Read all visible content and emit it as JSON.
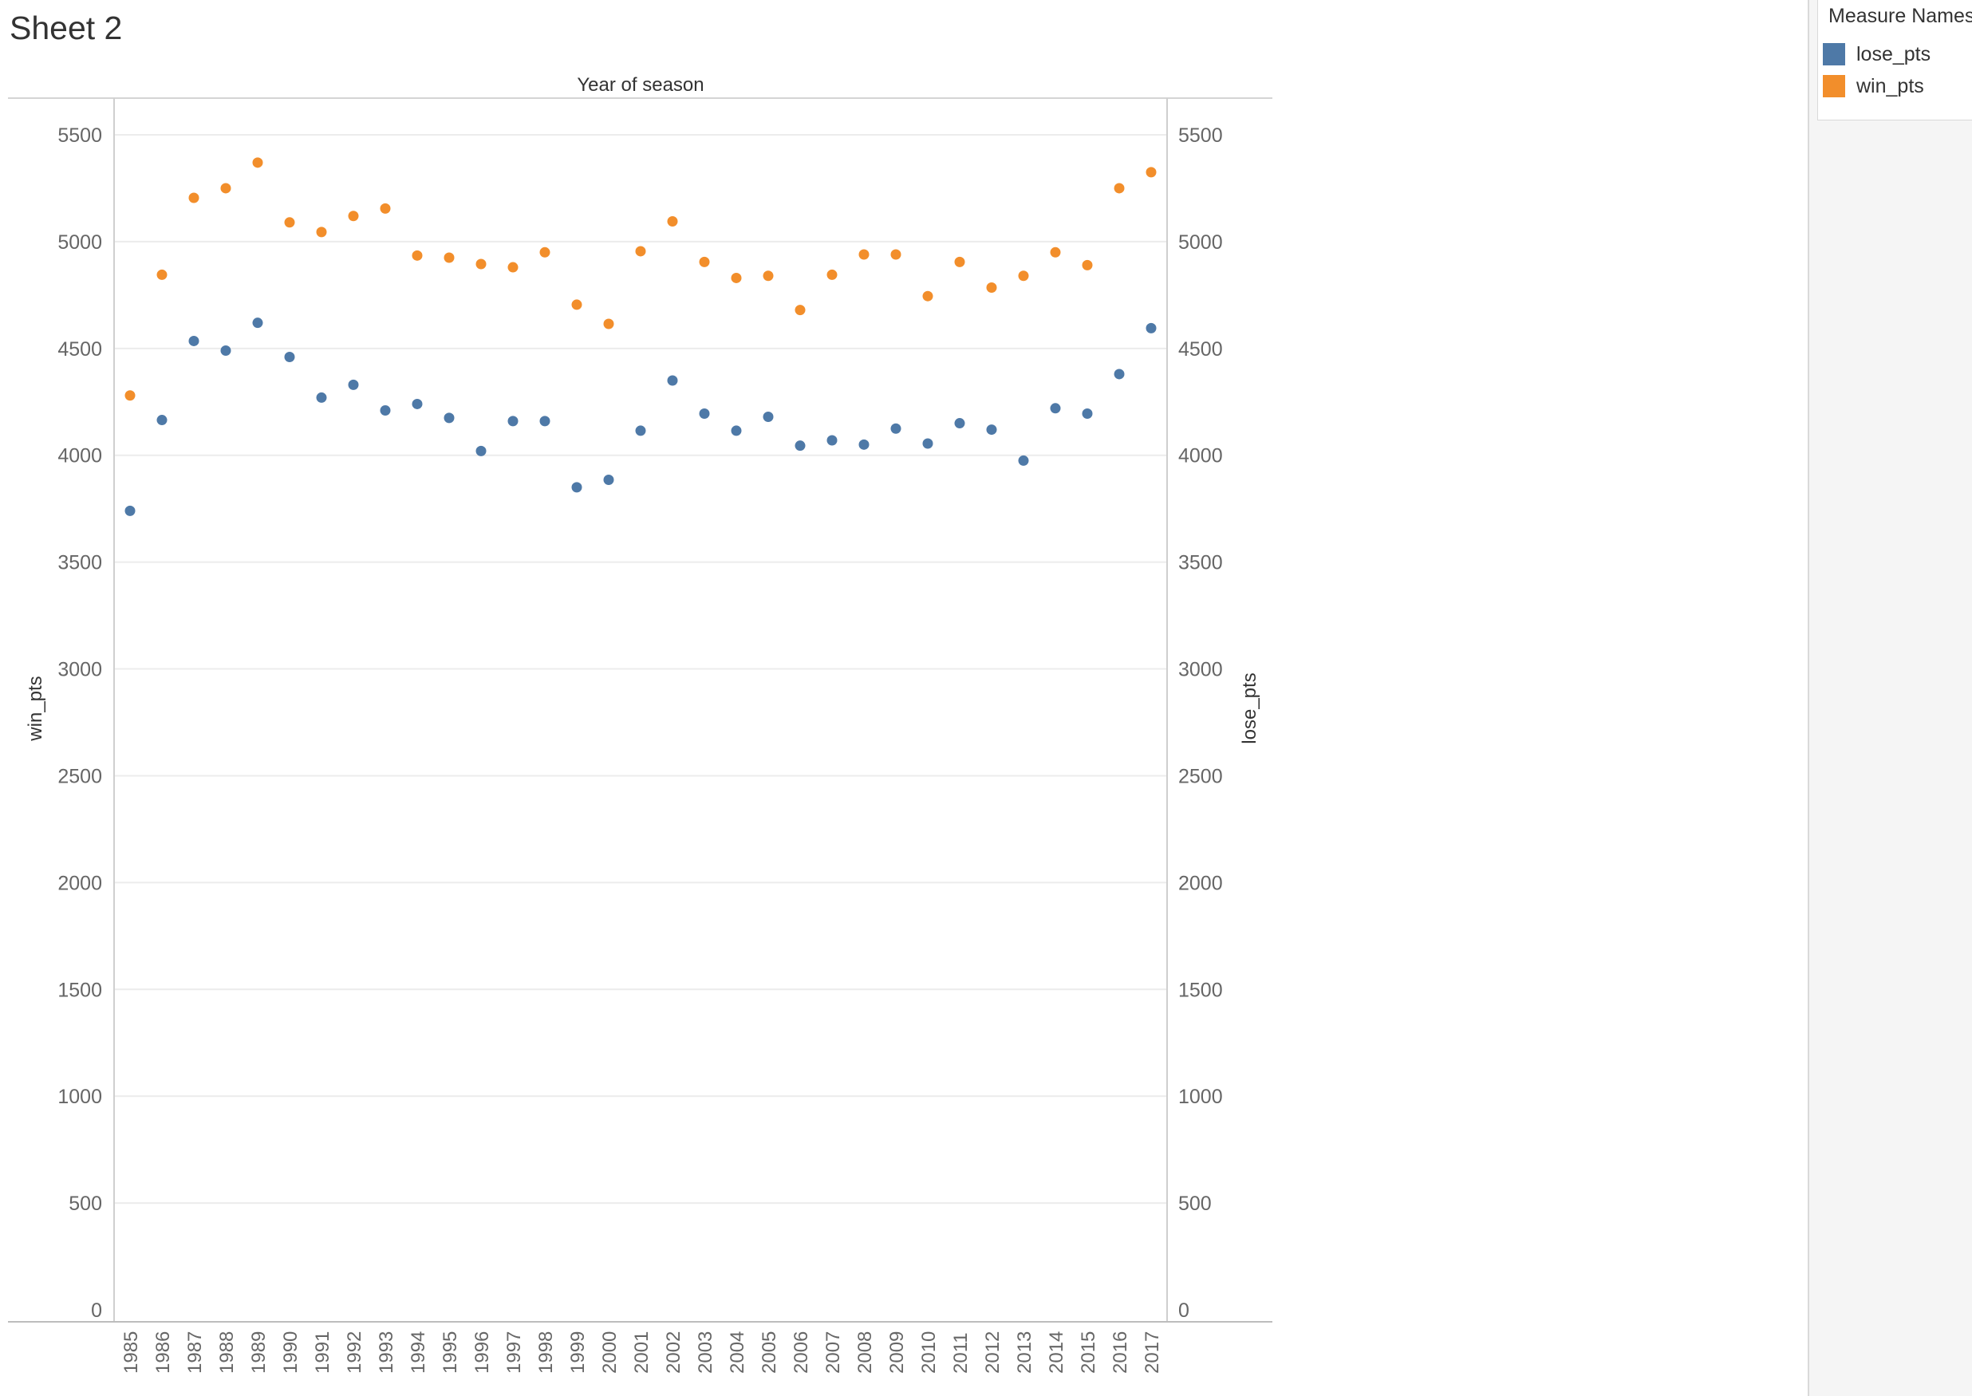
{
  "sheet": {
    "title": "Sheet 2"
  },
  "legend": {
    "title": "Measure Names",
    "items": [
      {
        "label": "lose_pts",
        "color": "#4e79a7"
      },
      {
        "label": "win_pts",
        "color": "#f28e2b"
      }
    ]
  },
  "chart_data": {
    "type": "scatter",
    "title": "Year of season",
    "xlabel": "Year of season",
    "ylabel_left": "win_pts",
    "ylabel_right": "lose_pts",
    "categories": [
      "1985",
      "1986",
      "1987",
      "1988",
      "1989",
      "1990",
      "1991",
      "1992",
      "1993",
      "1994",
      "1995",
      "1996",
      "1997",
      "1998",
      "1999",
      "2000",
      "2001",
      "2002",
      "2003",
      "2004",
      "2005",
      "2006",
      "2007",
      "2008",
      "2009",
      "2010",
      "2011",
      "2012",
      "2013",
      "2014",
      "2015",
      "2016",
      "2017"
    ],
    "ylim": [
      0,
      5700
    ],
    "yticks": [
      0,
      500,
      1000,
      1500,
      2000,
      2500,
      3000,
      3500,
      4000,
      4500,
      5000,
      5500
    ],
    "grid": true,
    "legend_position": "top-right",
    "series": [
      {
        "name": "win_pts",
        "color": "#f28e2b",
        "values": [
          4280,
          4845,
          5205,
          5250,
          5370,
          5090,
          5045,
          5120,
          5155,
          4935,
          4925,
          4895,
          4880,
          4950,
          4705,
          4615,
          4955,
          5095,
          4905,
          4830,
          4840,
          4680,
          4845,
          4940,
          4940,
          4745,
          4905,
          4785,
          4840,
          4950,
          4890,
          5250,
          5325
        ]
      },
      {
        "name": "lose_pts",
        "color": "#4e79a7",
        "values": [
          3740,
          4165,
          4535,
          4490,
          4620,
          4460,
          4270,
          4330,
          4210,
          4240,
          4175,
          4020,
          4160,
          4160,
          3850,
          3885,
          4115,
          4350,
          4195,
          4115,
          4180,
          4045,
          4070,
          4050,
          4125,
          4055,
          4150,
          4120,
          3975,
          4220,
          4195,
          4380,
          4595
        ]
      }
    ]
  }
}
